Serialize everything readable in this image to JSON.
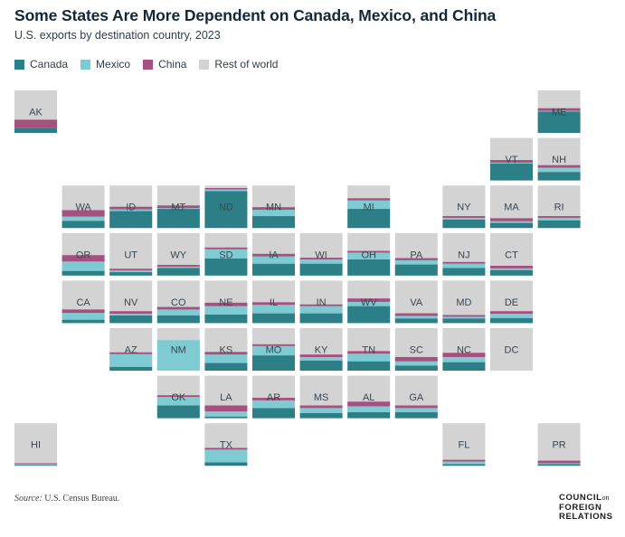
{
  "title": "Some States Are More Dependent on Canada, Mexico, and China",
  "subtitle": "U.S. exports by destination country, 2023",
  "legend": [
    {
      "label": "Canada",
      "color": "#2c7f86"
    },
    {
      "label": "Mexico",
      "color": "#7fcbd3"
    },
    {
      "label": "China",
      "color": "#a5507e"
    },
    {
      "label": "Rest of world",
      "color": "#d3d3d3"
    }
  ],
  "source": {
    "prefix": "Source:",
    "text": "U.S. Census Bureau."
  },
  "logo": {
    "line1": "COUNCIL",
    "on": "on",
    "line2": "FOREIGN",
    "line3": "RELATIONS"
  },
  "chart_data": {
    "type": "stacked-bar-tile-map",
    "title": "Some States Are More Dependent on Canada, Mexico, and China",
    "subtitle": "U.S. exports by destination country, 2023",
    "units": "share of state exports (%)",
    "series": [
      "Canada",
      "Mexico",
      "China",
      "Rest of world"
    ],
    "states": [
      {
        "id": "AK",
        "row": 0,
        "col": 0,
        "canada": 11,
        "mexico": 0,
        "china": 20
      },
      {
        "id": "ME",
        "row": 0,
        "col": 11,
        "canada": 50,
        "mexico": 2,
        "china": 6
      },
      {
        "id": "VT",
        "row": 1,
        "col": 10,
        "canada": 40,
        "mexico": 2,
        "china": 6
      },
      {
        "id": "NH",
        "row": 1,
        "col": 11,
        "canada": 20,
        "mexico": 10,
        "china": 6
      },
      {
        "id": "WA",
        "row": 2,
        "col": 1,
        "canada": 17,
        "mexico": 10,
        "china": 15
      },
      {
        "id": "ID",
        "row": 2,
        "col": 2,
        "canada": 40,
        "mexico": 4,
        "china": 6
      },
      {
        "id": "MT",
        "row": 2,
        "col": 3,
        "canada": 45,
        "mexico": 2,
        "china": 6
      },
      {
        "id": "ND",
        "row": 2,
        "col": 4,
        "canada": 87,
        "mexico": 4,
        "china": 3
      },
      {
        "id": "MN",
        "row": 2,
        "col": 5,
        "canada": 28,
        "mexico": 15,
        "china": 6
      },
      {
        "id": "MI",
        "row": 2,
        "col": 7,
        "canada": 45,
        "mexico": 20,
        "china": 5
      },
      {
        "id": "NY",
        "row": 2,
        "col": 9,
        "canada": 20,
        "mexico": 4,
        "china": 4
      },
      {
        "id": "MA",
        "row": 2,
        "col": 10,
        "canada": 12,
        "mexico": 4,
        "china": 7
      },
      {
        "id": "RI",
        "row": 2,
        "col": 11,
        "canada": 18,
        "mexico": 6,
        "china": 4
      },
      {
        "id": "OR",
        "row": 3,
        "col": 1,
        "canada": 11,
        "mexico": 22,
        "china": 15
      },
      {
        "id": "UT",
        "row": 3,
        "col": 2,
        "canada": 8,
        "mexico": 4,
        "china": 4
      },
      {
        "id": "WY",
        "row": 3,
        "col": 3,
        "canada": 18,
        "mexico": 3,
        "china": 4
      },
      {
        "id": "SD",
        "row": 3,
        "col": 4,
        "canada": 40,
        "mexico": 22,
        "china": 4
      },
      {
        "id": "IA",
        "row": 3,
        "col": 5,
        "canada": 28,
        "mexico": 17,
        "china": 6
      },
      {
        "id": "WI",
        "row": 3,
        "col": 6,
        "canada": 28,
        "mexico": 10,
        "china": 4
      },
      {
        "id": "OH",
        "row": 3,
        "col": 7,
        "canada": 38,
        "mexico": 16,
        "china": 4
      },
      {
        "id": "PA",
        "row": 3,
        "col": 8,
        "canada": 26,
        "mexico": 10,
        "china": 5
      },
      {
        "id": "NJ",
        "row": 3,
        "col": 9,
        "canada": 18,
        "mexico": 10,
        "china": 4
      },
      {
        "id": "CT",
        "row": 3,
        "col": 10,
        "canada": 13,
        "mexico": 4,
        "china": 6
      },
      {
        "id": "CA",
        "row": 4,
        "col": 1,
        "canada": 8,
        "mexico": 16,
        "china": 8
      },
      {
        "id": "NV",
        "row": 4,
        "col": 2,
        "canada": 18,
        "mexico": 4,
        "china": 6
      },
      {
        "id": "CO",
        "row": 4,
        "col": 3,
        "canada": 18,
        "mexico": 14,
        "china": 6
      },
      {
        "id": "NE",
        "row": 4,
        "col": 4,
        "canada": 20,
        "mexico": 20,
        "china": 8
      },
      {
        "id": "IL",
        "row": 4,
        "col": 5,
        "canada": 23,
        "mexico": 20,
        "china": 6
      },
      {
        "id": "IN",
        "row": 4,
        "col": 6,
        "canada": 23,
        "mexico": 17,
        "china": 4
      },
      {
        "id": "WV",
        "row": 4,
        "col": 7,
        "canada": 40,
        "mexico": 10,
        "china": 8
      },
      {
        "id": "VA",
        "row": 4,
        "col": 8,
        "canada": 11,
        "mexico": 6,
        "china": 6
      },
      {
        "id": "MD",
        "row": 4,
        "col": 9,
        "canada": 11,
        "mexico": 4,
        "china": 4
      },
      {
        "id": "DE",
        "row": 4,
        "col": 10,
        "canada": 12,
        "mexico": 10,
        "china": 6
      },
      {
        "id": "AZ",
        "row": 5,
        "col": 2,
        "canada": 9,
        "mexico": 30,
        "china": 4
      },
      {
        "id": "NM",
        "row": 5,
        "col": 3,
        "canada": 0,
        "mexico": 72,
        "china": 0
      },
      {
        "id": "KS",
        "row": 5,
        "col": 4,
        "canada": 18,
        "mexico": 20,
        "china": 6
      },
      {
        "id": "MO",
        "row": 5,
        "col": 5,
        "canada": 36,
        "mexico": 22,
        "china": 4
      },
      {
        "id": "KY",
        "row": 5,
        "col": 6,
        "canada": 24,
        "mexico": 8,
        "china": 6
      },
      {
        "id": "TN",
        "row": 5,
        "col": 7,
        "canada": 22,
        "mexico": 18,
        "china": 6
      },
      {
        "id": "SC",
        "row": 5,
        "col": 8,
        "canada": 12,
        "mexico": 10,
        "china": 10
      },
      {
        "id": "NC",
        "row": 5,
        "col": 9,
        "canada": 20,
        "mexico": 12,
        "china": 10
      },
      {
        "id": "DC",
        "row": 5,
        "col": 10,
        "canada": 0,
        "mexico": 0,
        "china": 0
      },
      {
        "id": "OK",
        "row": 6,
        "col": 3,
        "canada": 30,
        "mexico": 20,
        "china": 4
      },
      {
        "id": "LA",
        "row": 6,
        "col": 4,
        "canada": 4,
        "mexico": 12,
        "china": 14
      },
      {
        "id": "AR",
        "row": 6,
        "col": 5,
        "canada": 24,
        "mexico": 18,
        "china": 6
      },
      {
        "id": "MS",
        "row": 6,
        "col": 6,
        "canada": 12,
        "mexico": 12,
        "china": 6
      },
      {
        "id": "AL",
        "row": 6,
        "col": 7,
        "canada": 14,
        "mexico": 14,
        "china": 11
      },
      {
        "id": "GA",
        "row": 6,
        "col": 8,
        "canada": 14,
        "mexico": 10,
        "china": 6
      },
      {
        "id": "HI",
        "row": 7,
        "col": 0,
        "canada": 2,
        "mexico": 2,
        "china": 2
      },
      {
        "id": "TX",
        "row": 7,
        "col": 4,
        "canada": 8,
        "mexico": 30,
        "china": 4
      },
      {
        "id": "FL",
        "row": 7,
        "col": 9,
        "canada": 4,
        "mexico": 6,
        "china": 4
      },
      {
        "id": "PR",
        "row": 7,
        "col": 11,
        "canada": 4,
        "mexico": 2,
        "china": 6
      }
    ]
  }
}
